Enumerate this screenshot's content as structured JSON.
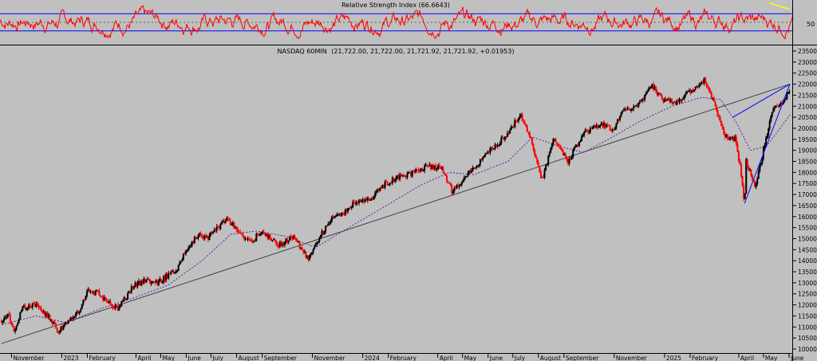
{
  "colors": {
    "background": "#c0c0c0",
    "rsi_line": "#ff0000",
    "rsi_bands": "#0000ff",
    "rsi_trend": "#ffff00",
    "up_candle": "#000000",
    "down_candle": "#ff0000",
    "moving_average": "#5a1fa0",
    "blue_trendline": "#0000ff",
    "long_trendline": "#404040"
  },
  "chart_data": [
    {
      "type": "line",
      "title": "Relative Strength Index (66.6643)",
      "series": [
        {
          "values": []
        }
      ],
      "ylim": [
        0,
        100
      ],
      "band_levels": [
        30,
        70
      ],
      "midline": 50,
      "y_tick_labels": [
        "50"
      ],
      "trend_segment": [
        {
          "x": "2025-05-08",
          "y": 95
        },
        {
          "x": "2025-06-02",
          "y": 80
        }
      ]
    },
    {
      "type": "line",
      "title": "NASDAQ 60MIN",
      "header_values": "(21,722.00, 21,722.00, 21,721.92, 21,721.92, +0.01953)",
      "x_tick_labels": [
        "November",
        "2023",
        "February",
        "April",
        "May",
        "June",
        "July",
        "August",
        "September",
        "November",
        "2024",
        "February",
        "April",
        "May",
        "June",
        "July",
        "August",
        "September",
        "November",
        "2025",
        "February",
        "April",
        "May",
        "June"
      ],
      "y_tick_labels": [
        "23500",
        "23000",
        "22500",
        "22000",
        "21500",
        "21000",
        "20500",
        "20000",
        "19500",
        "19000",
        "18500",
        "18000",
        "17500",
        "17000",
        "16500",
        "16000",
        "15500",
        "15000",
        "14500",
        "14000",
        "13500",
        "13000",
        "12500",
        "12000",
        "11500",
        "11000",
        "10500",
        "10000"
      ],
      "ylim": [
        10000,
        23500
      ],
      "price_path": [
        {
          "x": "2022-10-20",
          "y": 11300
        },
        {
          "x": "2022-10-28",
          "y": 11600
        },
        {
          "x": "2022-11-04",
          "y": 10800
        },
        {
          "x": "2022-11-15",
          "y": 11900
        },
        {
          "x": "2022-12-01",
          "y": 12000
        },
        {
          "x": "2022-12-15",
          "y": 11500
        },
        {
          "x": "2022-12-28",
          "y": 10800
        },
        {
          "x": "2023-01-06",
          "y": 11100
        },
        {
          "x": "2023-01-20",
          "y": 11600
        },
        {
          "x": "2023-02-02",
          "y": 12700
        },
        {
          "x": "2023-02-15",
          "y": 12500
        },
        {
          "x": "2023-03-10",
          "y": 11800
        },
        {
          "x": "2023-03-28",
          "y": 12800
        },
        {
          "x": "2023-04-10",
          "y": 13100
        },
        {
          "x": "2023-04-27",
          "y": 13000
        },
        {
          "x": "2023-05-20",
          "y": 13600
        },
        {
          "x": "2023-06-01",
          "y": 14500
        },
        {
          "x": "2023-06-15",
          "y": 15200
        },
        {
          "x": "2023-06-26",
          "y": 15000
        },
        {
          "x": "2023-07-10",
          "y": 15500
        },
        {
          "x": "2023-07-20",
          "y": 15900
        },
        {
          "x": "2023-08-05",
          "y": 15300
        },
        {
          "x": "2023-08-18",
          "y": 14800
        },
        {
          "x": "2023-09-01",
          "y": 15400
        },
        {
          "x": "2023-09-20",
          "y": 14700
        },
        {
          "x": "2023-10-10",
          "y": 15100
        },
        {
          "x": "2023-10-26",
          "y": 14100
        },
        {
          "x": "2023-11-10",
          "y": 15100
        },
        {
          "x": "2023-11-25",
          "y": 15900
        },
        {
          "x": "2023-12-10",
          "y": 16200
        },
        {
          "x": "2023-12-28",
          "y": 16800
        },
        {
          "x": "2024-01-10",
          "y": 16700
        },
        {
          "x": "2024-01-25",
          "y": 17400
        },
        {
          "x": "2024-02-15",
          "y": 17800
        },
        {
          "x": "2024-03-05",
          "y": 18000
        },
        {
          "x": "2024-03-20",
          "y": 18300
        },
        {
          "x": "2024-04-05",
          "y": 18200
        },
        {
          "x": "2024-04-19",
          "y": 17100
        },
        {
          "x": "2024-05-05",
          "y": 17800
        },
        {
          "x": "2024-05-25",
          "y": 18600
        },
        {
          "x": "2024-06-10",
          "y": 19200
        },
        {
          "x": "2024-06-25",
          "y": 19800
        },
        {
          "x": "2024-07-10",
          "y": 20600
        },
        {
          "x": "2024-07-24",
          "y": 19400
        },
        {
          "x": "2024-08-05",
          "y": 17600
        },
        {
          "x": "2024-08-20",
          "y": 19600
        },
        {
          "x": "2024-09-06",
          "y": 18500
        },
        {
          "x": "2024-09-25",
          "y": 19800
        },
        {
          "x": "2024-10-15",
          "y": 20200
        },
        {
          "x": "2024-10-31",
          "y": 19900
        },
        {
          "x": "2024-11-12",
          "y": 20800
        },
        {
          "x": "2024-11-30",
          "y": 21000
        },
        {
          "x": "2024-12-16",
          "y": 22000
        },
        {
          "x": "2024-12-31",
          "y": 21300
        },
        {
          "x": "2025-01-15",
          "y": 21200
        },
        {
          "x": "2025-01-30",
          "y": 21600
        },
        {
          "x": "2025-02-19",
          "y": 22200
        },
        {
          "x": "2025-03-05",
          "y": 20800
        },
        {
          "x": "2025-03-15",
          "y": 19600
        },
        {
          "x": "2025-03-28",
          "y": 19500
        },
        {
          "x": "2025-04-04",
          "y": 17900
        },
        {
          "x": "2025-04-08",
          "y": 16600
        },
        {
          "x": "2025-04-10",
          "y": 18500
        },
        {
          "x": "2025-04-21",
          "y": 17400
        },
        {
          "x": "2025-05-01",
          "y": 19000
        },
        {
          "x": "2025-05-12",
          "y": 20800
        },
        {
          "x": "2025-05-22",
          "y": 21100
        },
        {
          "x": "2025-06-02",
          "y": 21722
        }
      ],
      "moving_average_path": [
        {
          "x": "2022-10-20",
          "y": 11100
        },
        {
          "x": "2022-12-01",
          "y": 11500
        },
        {
          "x": "2023-01-06",
          "y": 11200
        },
        {
          "x": "2023-02-15",
          "y": 11800
        },
        {
          "x": "2023-03-28",
          "y": 12300
        },
        {
          "x": "2023-05-10",
          "y": 12900
        },
        {
          "x": "2023-06-20",
          "y": 14000
        },
        {
          "x": "2023-07-25",
          "y": 15200
        },
        {
          "x": "2023-08-25",
          "y": 15350
        },
        {
          "x": "2023-09-30",
          "y": 15100
        },
        {
          "x": "2023-11-05",
          "y": 14600
        },
        {
          "x": "2023-12-15",
          "y": 15500
        },
        {
          "x": "2024-01-30",
          "y": 16500
        },
        {
          "x": "2024-03-10",
          "y": 17400
        },
        {
          "x": "2024-04-15",
          "y": 18000
        },
        {
          "x": "2024-05-15",
          "y": 17900
        },
        {
          "x": "2024-06-25",
          "y": 18500
        },
        {
          "x": "2024-07-25",
          "y": 19600
        },
        {
          "x": "2024-08-25",
          "y": 19200
        },
        {
          "x": "2024-09-25",
          "y": 18900
        },
        {
          "x": "2024-10-30",
          "y": 19600
        },
        {
          "x": "2024-12-01",
          "y": 20300
        },
        {
          "x": "2025-01-10",
          "y": 21000
        },
        {
          "x": "2025-02-15",
          "y": 21400
        },
        {
          "x": "2025-03-10",
          "y": 21300
        },
        {
          "x": "2025-03-30",
          "y": 20200
        },
        {
          "x": "2025-04-15",
          "y": 19000
        },
        {
          "x": "2025-05-05",
          "y": 19200
        },
        {
          "x": "2025-06-02",
          "y": 20600
        }
      ],
      "trendlines": [
        {
          "name": "long",
          "from": {
            "x": "2022-10-20",
            "y": 10250
          },
          "to": {
            "x": "2025-06-02",
            "y": 22000
          }
        },
        {
          "name": "upper",
          "from": {
            "x": "2025-03-25",
            "y": 20500
          },
          "to": {
            "x": "2025-06-02",
            "y": 22000
          }
        },
        {
          "name": "lower",
          "from": {
            "x": "2025-04-08",
            "y": 16600
          },
          "to": {
            "x": "2025-06-02",
            "y": 22000
          }
        }
      ]
    }
  ]
}
